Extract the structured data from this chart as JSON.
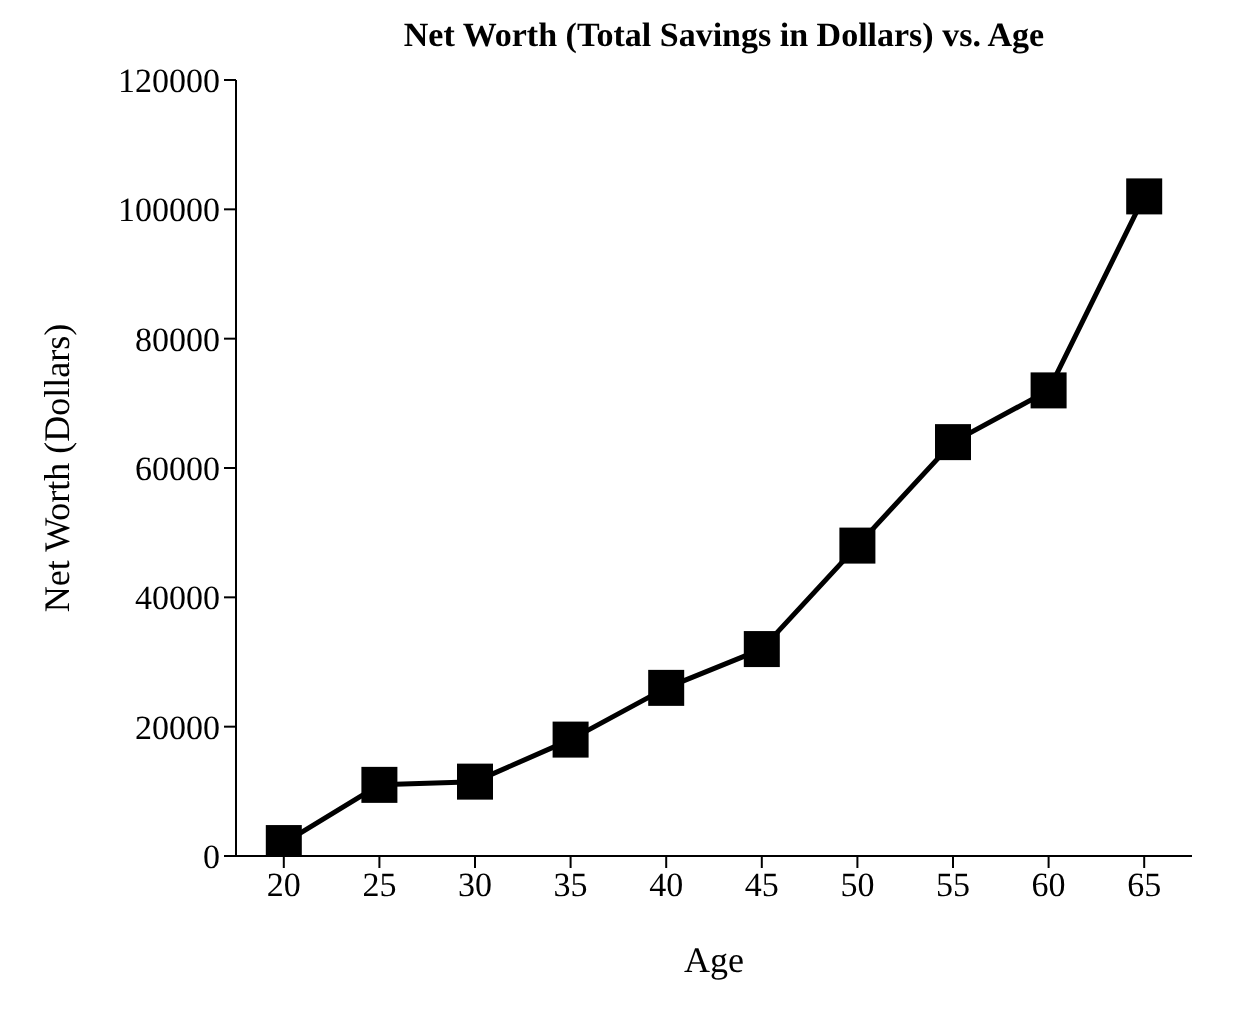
{
  "chart_data": {
    "type": "line",
    "title": "Net Worth (Total Savings in Dollars) vs. Age",
    "xlabel": "Age",
    "ylabel": "Net Worth (Dollars)",
    "x": [
      20,
      25,
      30,
      35,
      40,
      45,
      50,
      55,
      60,
      65
    ],
    "series": [
      {
        "color": "#000000",
        "values": [
          2000,
          11000,
          11500,
          18000,
          26000,
          32000,
          48000,
          64000,
          72000,
          102000
        ]
      }
    ],
    "xlim": [
      17.5,
      67.5
    ],
    "xticks": [
      20,
      25,
      30,
      35,
      40,
      45,
      50,
      55,
      60,
      65
    ],
    "ylim": [
      0,
      120000
    ],
    "yticks": [
      0,
      20000,
      40000,
      60000,
      80000,
      100000,
      120000
    ],
    "marker": "square",
    "line_style": "solid",
    "grid": false,
    "legend": false
  }
}
